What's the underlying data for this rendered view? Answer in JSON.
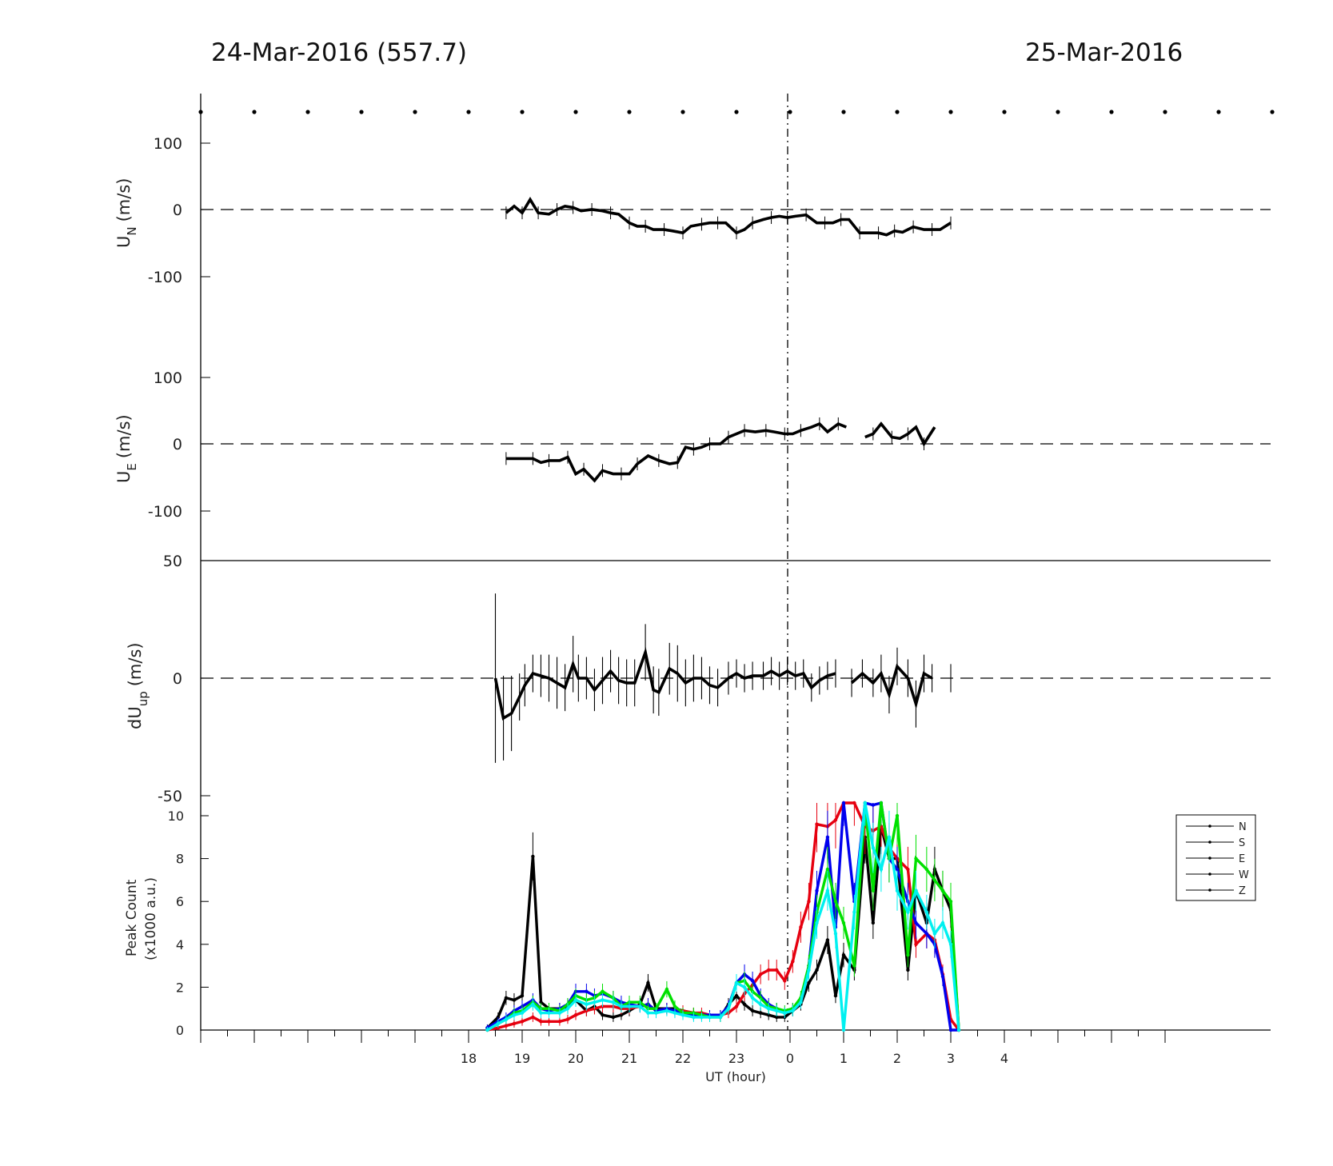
{
  "titles": {
    "left": "24-Mar-2016 (557.7)",
    "right": "25-Mar-2016"
  },
  "chart_data": [
    {
      "type": "line",
      "panel": "UN",
      "ylabel": "U",
      "ylabel_sub": "N",
      "ylabel_unit": "(m/s)",
      "yticks": [
        100,
        0,
        -100
      ],
      "ylim": [
        -175,
        175
      ],
      "x": [
        18.7,
        18.85,
        19.0,
        19.15,
        19.3,
        19.5,
        19.65,
        19.8,
        19.95,
        20.1,
        20.3,
        20.5,
        20.65,
        20.8,
        21.0,
        21.15,
        21.3,
        21.45,
        21.65,
        21.8,
        22.0,
        22.15,
        22.35,
        22.5,
        22.65,
        22.8,
        23.0,
        23.15,
        23.3,
        23.5,
        23.65,
        23.8,
        23.95,
        24.1,
        24.3,
        24.5,
        24.65,
        24.8,
        24.95,
        25.1,
        25.3,
        25.5,
        25.65,
        25.8,
        25.95,
        26.1,
        26.3,
        26.5,
        26.65,
        26.8,
        27.0
      ],
      "values": [
        -5,
        5,
        -5,
        15,
        -5,
        -7,
        0,
        5,
        3,
        -2,
        0,
        -2,
        -5,
        -7,
        -20,
        -25,
        -25,
        -30,
        -30,
        -32,
        -35,
        -25,
        -22,
        -20,
        -20,
        -20,
        -35,
        -30,
        -20,
        -15,
        -12,
        -10,
        -12,
        -10,
        -8,
        -20,
        -20,
        -20,
        -15,
        -15,
        -35,
        -35,
        -35,
        -38,
        -32,
        -34,
        -26,
        -30,
        -30,
        -30,
        -20
      ],
      "color": "#000000"
    },
    {
      "type": "line",
      "panel": "UE",
      "ylabel": "U",
      "ylabel_sub": "E",
      "ylabel_unit": "(m/s)",
      "yticks": [
        100,
        0,
        -100
      ],
      "ylim": [
        -175,
        175
      ],
      "x": [
        18.7,
        19.0,
        19.2,
        19.35,
        19.5,
        19.7,
        19.85,
        20.0,
        20.15,
        20.35,
        20.5,
        20.7,
        20.85,
        21.0,
        21.15,
        21.35,
        21.55,
        21.75,
        21.9,
        22.05,
        22.2,
        22.35,
        22.5,
        22.7,
        22.85,
        23.0,
        23.15,
        23.35,
        23.55,
        23.7,
        23.9,
        24.05,
        24.2,
        24.4,
        24.55,
        24.7,
        24.9,
        25.05,
        25.2,
        25.4,
        25.55,
        25.7,
        25.9,
        26.05,
        26.2,
        26.35,
        26.5,
        26.7,
        26.85
      ],
      "values": [
        -22,
        -22,
        -22,
        -28,
        -25,
        -25,
        -20,
        -45,
        -38,
        -55,
        -40,
        -45,
        -45,
        -45,
        -30,
        -18,
        -25,
        -30,
        -28,
        -5,
        -8,
        -5,
        0,
        0,
        10,
        15,
        20,
        18,
        20,
        18,
        15,
        15,
        20,
        25,
        30,
        18,
        30,
        25,
        null,
        10,
        15,
        30,
        10,
        8,
        15,
        25,
        0,
        25,
        null
      ],
      "color": "#000000"
    },
    {
      "type": "line",
      "panel": "dUup",
      "ylabel": "dU",
      "ylabel_sub": "up",
      "ylabel_unit": "(m/s)",
      "yticks": [
        50,
        0,
        -50
      ],
      "ylim": [
        -50,
        50
      ],
      "x": [
        18.5,
        18.65,
        18.8,
        18.95,
        19.05,
        19.2,
        19.35,
        19.5,
        19.65,
        19.8,
        19.95,
        20.05,
        20.2,
        20.35,
        20.5,
        20.65,
        20.8,
        20.95,
        21.1,
        21.3,
        21.45,
        21.55,
        21.75,
        21.9,
        22.05,
        22.2,
        22.35,
        22.5,
        22.65,
        22.85,
        23.0,
        23.15,
        23.3,
        23.5,
        23.65,
        23.8,
        23.95,
        24.1,
        24.25,
        24.4,
        24.55,
        24.7,
        24.85,
        25.0,
        25.15,
        25.35,
        25.55,
        25.7,
        25.85,
        26.0,
        26.2,
        26.35,
        26.5,
        26.65,
        26.8,
        27.0
      ],
      "values": [
        0,
        -17,
        -15,
        -8,
        -3,
        2,
        1,
        0,
        -2,
        -4,
        6,
        0,
        0,
        -5,
        -1,
        3,
        -1,
        -2,
        -2,
        11,
        -5,
        -6,
        4,
        2,
        -2,
        0,
        0,
        -3,
        -4,
        0,
        2,
        0,
        1,
        1,
        3,
        1,
        3,
        1,
        2,
        -4,
        -1,
        1,
        2,
        null,
        -2,
        2,
        -2,
        2,
        -7,
        5,
        0,
        -11,
        2,
        0,
        null,
        0
      ],
      "errors": [
        36,
        18,
        16,
        10,
        9,
        8,
        9,
        10,
        11,
        10,
        12,
        10,
        9,
        9,
        10,
        9,
        10,
        10,
        10,
        12,
        10,
        10,
        11,
        12,
        10,
        10,
        9,
        8,
        8,
        7,
        6,
        6,
        6,
        6,
        6,
        6,
        6,
        6,
        6,
        6,
        6,
        6,
        6,
        null,
        6,
        6,
        6,
        8,
        8,
        8,
        8,
        10,
        8,
        6,
        null,
        6
      ],
      "color": "#000000"
    },
    {
      "type": "line",
      "panel": "peak",
      "ylabel": "Peak Count",
      "ylabel_line2": "(x1000 a.u.)",
      "xlabel": "UT (hour)",
      "xtick_labels": [
        "18",
        "19",
        "20",
        "21",
        "22",
        "23",
        "0",
        "1",
        "2",
        "3",
        "4"
      ],
      "yticks": [
        0,
        2,
        4,
        6,
        8,
        10
      ],
      "ylim": [
        0,
        11
      ],
      "legend": [
        "N",
        "S",
        "E",
        "W",
        "Z"
      ],
      "legend_position": "right",
      "x": [
        18.35,
        18.55,
        18.7,
        18.85,
        19.0,
        19.2,
        19.35,
        19.5,
        19.7,
        19.85,
        20.0,
        20.2,
        20.35,
        20.5,
        20.7,
        20.85,
        21.0,
        21.2,
        21.35,
        21.5,
        21.7,
        21.85,
        22.0,
        22.2,
        22.35,
        22.5,
        22.7,
        22.85,
        23.0,
        23.15,
        23.3,
        23.45,
        23.6,
        23.75,
        23.9,
        24.05,
        24.2,
        24.35,
        24.5,
        24.7,
        24.85,
        25.0,
        25.2,
        25.4,
        25.55,
        25.7,
        25.85,
        26.0,
        26.2,
        26.35,
        26.55,
        26.7,
        26.85,
        27.0,
        27.15
      ],
      "series": [
        {
          "name": "N",
          "color": "#000000",
          "values": [
            0.1,
            0.6,
            1.5,
            1.4,
            1.6,
            8.1,
            1.3,
            1.0,
            1.0,
            1.1,
            1.4,
            0.9,
            1.1,
            0.7,
            0.6,
            0.7,
            0.9,
            1.2,
            2.2,
            1.0,
            1.0,
            1.0,
            0.9,
            0.8,
            0.7,
            0.7,
            0.6,
            1.2,
            1.6,
            1.2,
            0.9,
            0.8,
            0.7,
            0.6,
            0.6,
            0.9,
            1.2,
            2.2,
            2.8,
            4.2,
            1.6,
            3.5,
            2.8,
            9.0,
            5.0,
            9.5,
            8.0,
            8.0,
            2.8,
            6.5,
            5.0,
            7.5,
            6.5,
            5.6,
            0.0
          ]
        },
        {
          "name": "S",
          "color": "#e6000f",
          "values": [
            0.0,
            0.1,
            0.2,
            0.3,
            0.4,
            0.6,
            0.4,
            0.4,
            0.4,
            0.5,
            0.7,
            0.9,
            1.0,
            1.1,
            1.1,
            1.0,
            1.0,
            1.1,
            1.2,
            0.9,
            1.0,
            0.9,
            0.9,
            0.8,
            0.8,
            0.7,
            0.7,
            0.8,
            1.1,
            1.7,
            2.1,
            2.6,
            2.8,
            2.8,
            2.3,
            3.2,
            4.8,
            6.0,
            9.6,
            9.5,
            9.8,
            11.0,
            11.0,
            9.5,
            9.3,
            9.5,
            8.5,
            8.0,
            7.5,
            4.0,
            4.5,
            4.2,
            2.6,
            0.5,
            0.0
          ]
        },
        {
          "name": "E",
          "color": "#0000ee",
          "values": [
            0.1,
            0.4,
            0.6,
            0.9,
            1.1,
            1.4,
            1.0,
            0.9,
            1.0,
            1.2,
            1.8,
            1.8,
            1.6,
            1.7,
            1.5,
            1.3,
            1.2,
            1.1,
            1.2,
            0.9,
            1.0,
            0.9,
            0.8,
            0.7,
            0.7,
            0.7,
            0.7,
            1.1,
            2.2,
            2.6,
            2.3,
            1.6,
            1.2,
            1.0,
            0.8,
            1.0,
            1.4,
            3.0,
            6.5,
            9.0,
            4.8,
            11.0,
            6.0,
            11.0,
            10.5,
            11.0,
            8.0,
            7.5,
            6.0,
            5.0,
            4.5,
            4.0,
            2.5,
            0.0,
            0.0
          ]
        },
        {
          "name": "W",
          "color": "#00e000",
          "values": [
            0.0,
            0.3,
            0.5,
            0.8,
            0.9,
            1.3,
            1.0,
            1.0,
            0.9,
            1.2,
            1.6,
            1.4,
            1.5,
            1.8,
            1.5,
            1.1,
            1.3,
            1.3,
            1.0,
            1.0,
            1.9,
            1.1,
            0.8,
            0.8,
            0.7,
            0.6,
            0.6,
            1.0,
            2.2,
            2.3,
            1.8,
            1.5,
            1.1,
            1.0,
            0.9,
            1.0,
            1.5,
            3.0,
            5.5,
            7.5,
            6.0,
            5.0,
            3.0,
            11.0,
            6.5,
            11.0,
            8.0,
            10.0,
            3.5,
            8.0,
            7.5,
            7.0,
            6.5,
            6.0,
            0.0
          ]
        },
        {
          "name": "Z",
          "color": "#00f0f0",
          "values": [
            0.0,
            0.3,
            0.5,
            0.7,
            0.8,
            1.2,
            0.8,
            0.8,
            0.8,
            1.0,
            1.4,
            1.2,
            1.3,
            1.4,
            1.3,
            1.1,
            1.1,
            1.1,
            0.8,
            0.8,
            0.9,
            0.8,
            0.7,
            0.6,
            0.6,
            0.6,
            0.6,
            1.0,
            2.2,
            2.0,
            1.5,
            1.2,
            1.0,
            0.9,
            0.8,
            0.9,
            1.3,
            2.8,
            5.0,
            6.5,
            4.5,
            0.0,
            5.5,
            11.0,
            8.5,
            7.5,
            9.0,
            6.5,
            5.5,
            6.5,
            5.5,
            4.5,
            5.0,
            4.0,
            0.0
          ]
        }
      ]
    }
  ]
}
